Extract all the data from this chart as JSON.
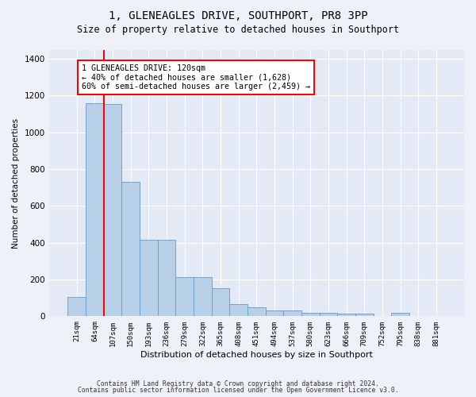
{
  "title": "1, GLENEAGLES DRIVE, SOUTHPORT, PR8 3PP",
  "subtitle": "Size of property relative to detached houses in Southport",
  "xlabel": "Distribution of detached houses by size in Southport",
  "ylabel": "Number of detached properties",
  "bar_labels": [
    "21sqm",
    "64sqm",
    "107sqm",
    "150sqm",
    "193sqm",
    "236sqm",
    "279sqm",
    "322sqm",
    "365sqm",
    "408sqm",
    "451sqm",
    "494sqm",
    "537sqm",
    "580sqm",
    "623sqm",
    "666sqm",
    "709sqm",
    "752sqm",
    "795sqm",
    "838sqm",
    "881sqm"
  ],
  "bar_values": [
    107,
    1160,
    1155,
    730,
    415,
    415,
    215,
    215,
    155,
    68,
    48,
    30,
    30,
    18,
    18,
    15,
    15,
    0,
    20,
    0,
    0
  ],
  "bar_color": "#b8cfe8",
  "bar_edge_color": "#6699cc",
  "vline_x_index": 2,
  "vline_color": "red",
  "annotation_text": "1 GLENEAGLES DRIVE: 120sqm\n← 40% of detached houses are smaller (1,628)\n60% of semi-detached houses are larger (2,459) →",
  "annotation_box_color": "white",
  "annotation_box_edge_color": "red",
  "ylim": [
    0,
    1450
  ],
  "yticks": [
    0,
    200,
    400,
    600,
    800,
    1000,
    1200,
    1400
  ],
  "footer_line1": "Contains HM Land Registry data © Crown copyright and database right 2024.",
  "footer_line2": "Contains public sector information licensed under the Open Government Licence v3.0.",
  "bg_color": "#eef2f8",
  "plot_bg_color": "#e4eaf5"
}
